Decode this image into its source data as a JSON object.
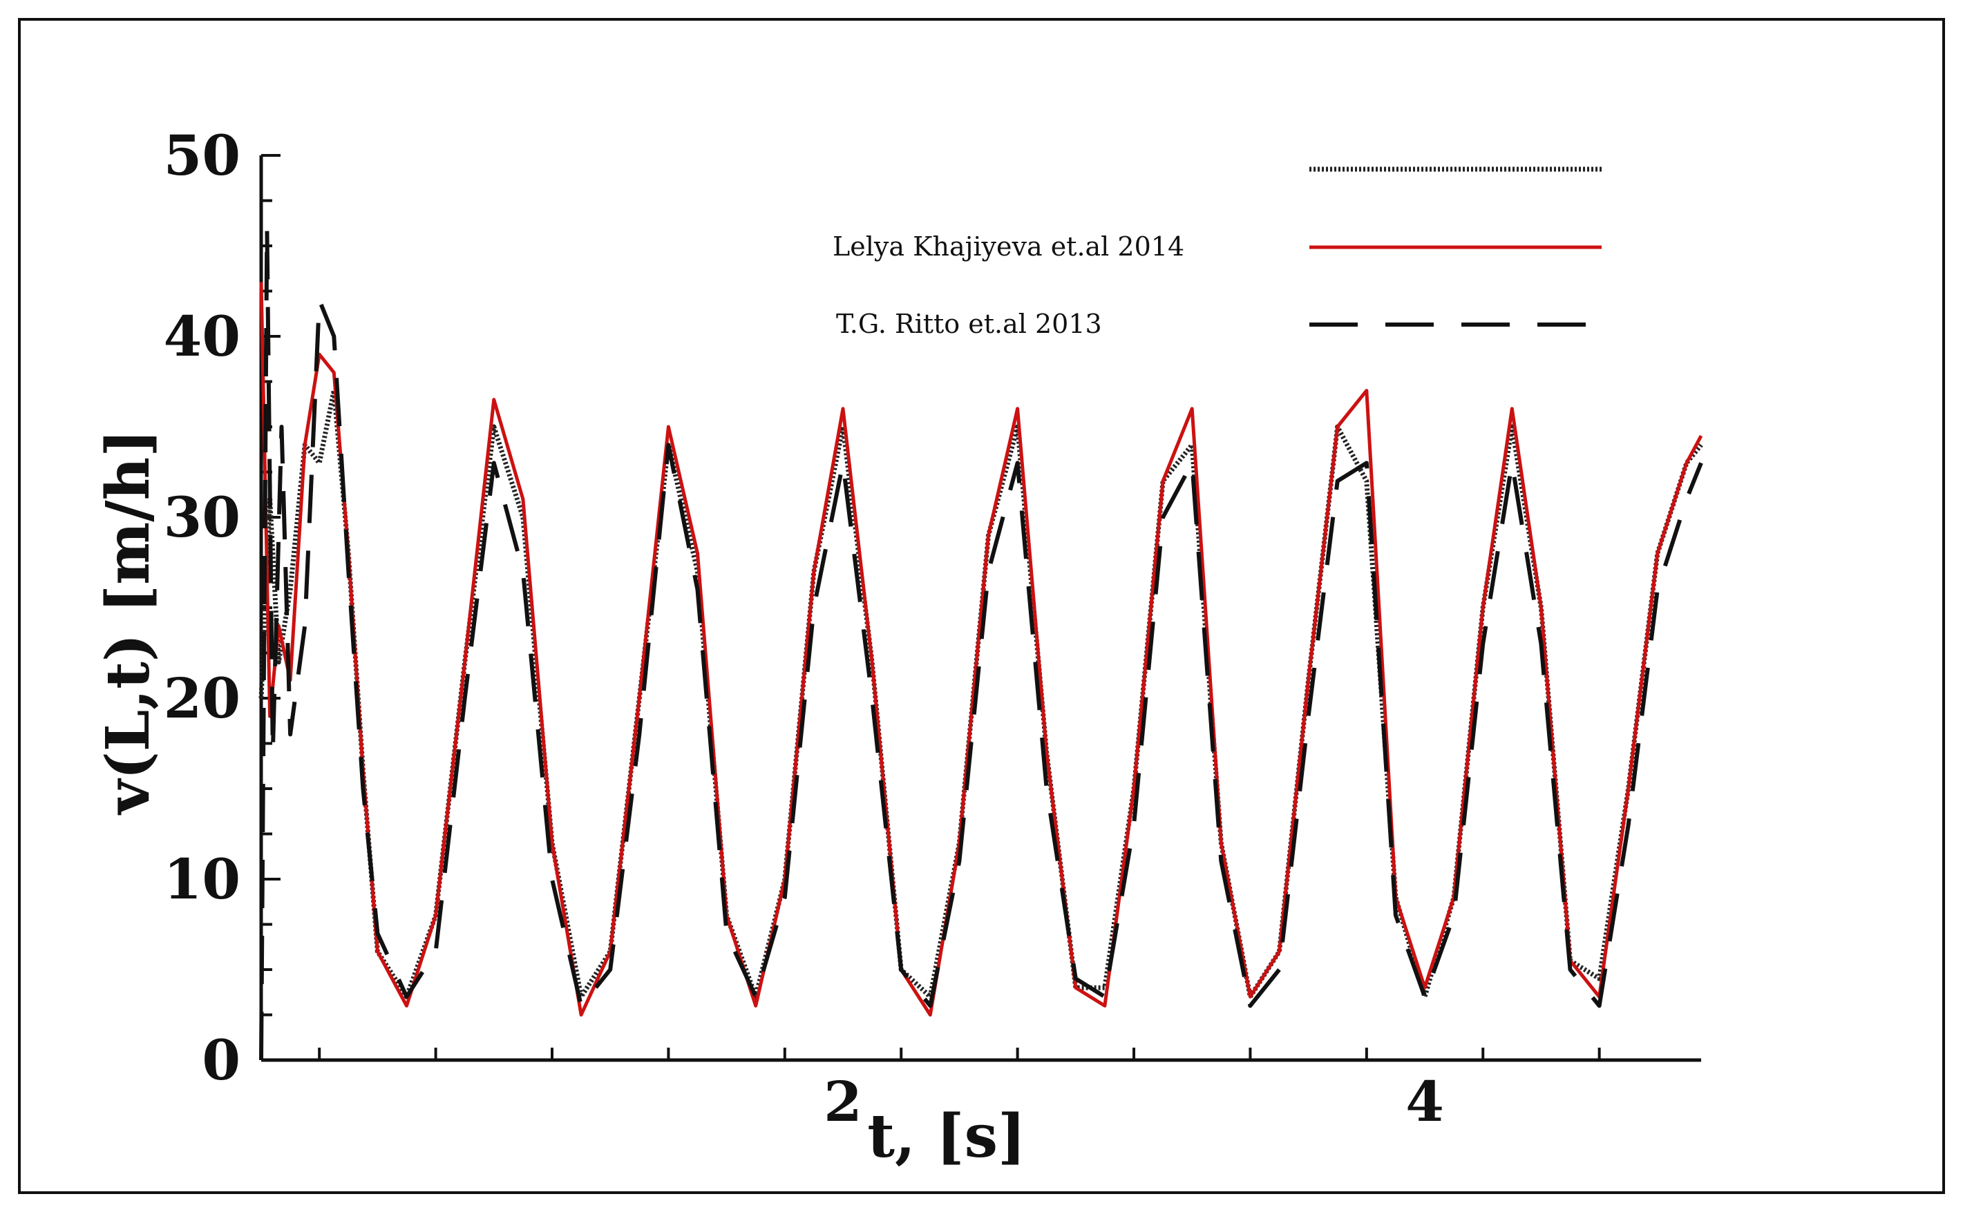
{
  "chart_data": {
    "type": "line",
    "title": "",
    "xlabel": "t, [s]",
    "ylabel": "v(L,t) [m/h]",
    "xlim": [
      0,
      4.95
    ],
    "ylim": [
      0,
      50
    ],
    "x_ticks": [
      2,
      4
    ],
    "y_ticks": [
      0,
      10,
      20,
      30,
      40,
      50
    ],
    "grid": false,
    "legend_position": "top-right",
    "series": [
      {
        "name": "",
        "style": "dotted",
        "color": "#222222",
        "x": [
          0,
          0.03,
          0.06,
          0.1,
          0.15,
          0.2,
          0.25,
          0.3,
          0.35,
          0.4,
          0.5,
          0.6,
          0.7,
          0.8,
          0.9,
          1.0,
          1.1,
          1.2,
          1.3,
          1.4,
          1.5,
          1.6,
          1.7,
          1.8,
          1.9,
          2.0,
          2.1,
          2.2,
          2.3,
          2.4,
          2.5,
          2.6,
          2.7,
          2.8,
          2.9,
          3.0,
          3.1,
          3.2,
          3.3,
          3.4,
          3.5,
          3.6,
          3.7,
          3.8,
          3.9,
          4.0,
          4.1,
          4.2,
          4.3,
          4.4,
          4.5,
          4.6,
          4.7,
          4.8,
          4.9,
          4.95
        ],
        "y": [
          20,
          31,
          22,
          26,
          34,
          33,
          37,
          28,
          16,
          6,
          3.5,
          8,
          22,
          35,
          30,
          12,
          3.5,
          6,
          20,
          34,
          27,
          8,
          3.5,
          10,
          27,
          35,
          22,
          5,
          3.5,
          12,
          29,
          35,
          17,
          4,
          4,
          15,
          32,
          34,
          12,
          3.5,
          6,
          21,
          35,
          32,
          9,
          3.5,
          9,
          25,
          35,
          25,
          5.5,
          4.5,
          15,
          28,
          33,
          34
        ]
      },
      {
        "name": "Lelya Khajiyeva et.al 2014",
        "style": "solid",
        "color": "#cc1111",
        "x": [
          0,
          0.03,
          0.06,
          0.1,
          0.15,
          0.2,
          0.25,
          0.3,
          0.35,
          0.4,
          0.5,
          0.6,
          0.7,
          0.8,
          0.9,
          1.0,
          1.1,
          1.2,
          1.3,
          1.4,
          1.5,
          1.6,
          1.7,
          1.8,
          1.9,
          2.0,
          2.1,
          2.2,
          2.3,
          2.4,
          2.5,
          2.6,
          2.7,
          2.8,
          2.9,
          3.0,
          3.1,
          3.2,
          3.3,
          3.4,
          3.5,
          3.6,
          3.7,
          3.8,
          3.9,
          4.0,
          4.1,
          4.2,
          4.3,
          4.4,
          4.5,
          4.6,
          4.7,
          4.8,
          4.9,
          4.95
        ],
        "y": [
          43,
          19,
          24,
          21,
          34,
          39,
          38,
          28,
          16,
          6,
          3,
          8,
          22,
          36.5,
          31,
          12,
          2.5,
          6,
          20,
          35,
          28,
          8,
          3,
          10,
          27,
          36,
          22,
          5,
          2.5,
          12,
          29,
          36,
          17,
          4,
          3,
          15,
          32,
          36,
          12,
          3.5,
          6,
          21,
          35,
          37,
          9,
          4,
          9,
          25,
          36,
          25,
          5.5,
          3.5,
          15,
          28,
          33,
          34.5
        ]
      },
      {
        "name": "T.G. Ritto et.al 2013",
        "style": "dashed",
        "color": "#111111",
        "x": [
          0,
          0.02,
          0.04,
          0.07,
          0.1,
          0.15,
          0.2,
          0.25,
          0.3,
          0.35,
          0.4,
          0.5,
          0.6,
          0.7,
          0.8,
          0.9,
          1.0,
          1.1,
          1.2,
          1.3,
          1.4,
          1.5,
          1.6,
          1.7,
          1.8,
          1.9,
          2.0,
          2.1,
          2.2,
          2.3,
          2.4,
          2.5,
          2.6,
          2.7,
          2.8,
          2.9,
          3.0,
          3.1,
          3.2,
          3.3,
          3.4,
          3.5,
          3.6,
          3.7,
          3.8,
          3.9,
          4.0,
          4.1,
          4.2,
          4.3,
          4.4,
          4.5,
          4.6,
          4.7,
          4.8,
          4.9,
          4.95
        ],
        "y": [
          0,
          46,
          17,
          35,
          18,
          24,
          42,
          40,
          27,
          15,
          7,
          3.5,
          6,
          20,
          33,
          27,
          10,
          3,
          5,
          18,
          34,
          26,
          7,
          3.5,
          9,
          25,
          33,
          20,
          5,
          3,
          11,
          27,
          33,
          15,
          4.5,
          3.5,
          13,
          30,
          33,
          11,
          3,
          5,
          19,
          32,
          33,
          8,
          3.5,
          8,
          23,
          33,
          23,
          5,
          3,
          13,
          26,
          31,
          33
        ]
      }
    ]
  }
}
